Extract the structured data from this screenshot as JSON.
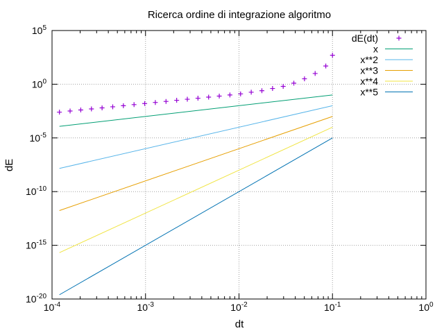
{
  "chart_data": {
    "type": "line",
    "title": "Ricerca ordine di integrazione algoritmo",
    "xlabel": "dt",
    "ylabel": "dE",
    "xscale": "log",
    "yscale": "log",
    "xlim": [
      0.0001,
      1
    ],
    "ylim": [
      1e-20,
      100000
    ],
    "grid": true,
    "legend_position": "top-right",
    "x_ticks": [
      {
        "value": 0.0001,
        "base": "10",
        "exp": "-4"
      },
      {
        "value": 0.001,
        "base": "10",
        "exp": "-3"
      },
      {
        "value": 0.01,
        "base": "10",
        "exp": "-2"
      },
      {
        "value": 0.1,
        "base": "10",
        "exp": "-1"
      },
      {
        "value": 1,
        "base": "10",
        "exp": "0"
      }
    ],
    "y_ticks": [
      {
        "value": 1e-20,
        "base": "10",
        "exp": "-20"
      },
      {
        "value": 1e-15,
        "base": "10",
        "exp": "-15"
      },
      {
        "value": 1e-10,
        "base": "10",
        "exp": "-10"
      },
      {
        "value": 1e-05,
        "base": "10",
        "exp": "-5"
      },
      {
        "value": 1,
        "base": "10",
        "exp": "0"
      },
      {
        "value": 100000,
        "base": "10",
        "exp": "5"
      }
    ],
    "x_range": [
      0.00012,
      0.1
    ],
    "series": [
      {
        "name": "dE(dt)",
        "style": "points",
        "color": "#9400d3",
        "x": [
          0.00012,
          0.000156,
          0.000203,
          0.000264,
          0.000343,
          0.000446,
          0.00058,
          0.000754,
          0.00098,
          0.001274,
          0.001657,
          0.002154,
          0.0028,
          0.00364,
          0.004732,
          0.006152,
          0.007998,
          0.010397,
          0.013517,
          0.017572,
          0.022844,
          0.029697,
          0.038606,
          0.050188,
          0.065244,
          0.084817,
          0.1
        ],
        "y": [
          0.0025,
          0.0032,
          0.004,
          0.005,
          0.0063,
          0.0079,
          0.01,
          0.0126,
          0.0158,
          0.02,
          0.025,
          0.032,
          0.04,
          0.05,
          0.063,
          0.079,
          0.1,
          0.126,
          0.18,
          0.25,
          0.4,
          0.63,
          1.26,
          3.2,
          10,
          50,
          500
        ]
      },
      {
        "name": "x",
        "style": "line",
        "color": "#009e73",
        "power": 1
      },
      {
        "name": "x**2",
        "style": "line",
        "color": "#56b4e9",
        "power": 2
      },
      {
        "name": "x**3",
        "style": "line",
        "color": "#e69f00",
        "power": 3
      },
      {
        "name": "x**4",
        "style": "line",
        "color": "#f0e442",
        "power": 4
      },
      {
        "name": "x**5",
        "style": "line",
        "color": "#0072b2",
        "power": 5
      }
    ]
  }
}
